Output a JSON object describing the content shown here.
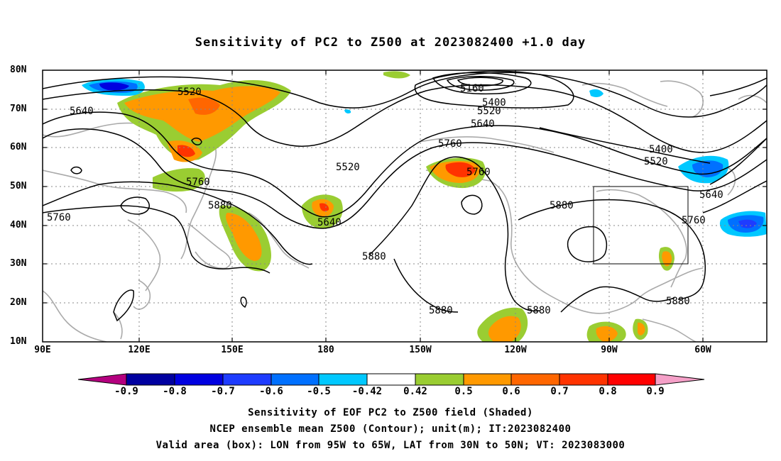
{
  "title": "Sensitivity of PC2 to Z500 at 2023082400 +1.0 day",
  "lat_labels": [
    "80N",
    "70N",
    "60N",
    "50N",
    "40N",
    "30N",
    "20N",
    "10N"
  ],
  "lon_labels": [
    "90E",
    "120E",
    "150E",
    "180",
    "150W",
    "120W",
    "90W",
    "60W"
  ],
  "contour_labels": [
    {
      "text": "5160"
    },
    {
      "text": "5400"
    },
    {
      "text": "5520"
    },
    {
      "text": "5640"
    },
    {
      "text": "5520"
    },
    {
      "text": "5640"
    },
    {
      "text": "5760"
    },
    {
      "text": "5520"
    },
    {
      "text": "5760"
    },
    {
      "text": "5760"
    },
    {
      "text": "5880"
    },
    {
      "text": "5640"
    },
    {
      "text": "5880"
    },
    {
      "text": "5880"
    },
    {
      "text": "5880"
    },
    {
      "text": "5880"
    },
    {
      "text": "5880"
    },
    {
      "text": "5400"
    },
    {
      "text": "5520"
    },
    {
      "text": "5640"
    },
    {
      "text": "5760"
    },
    {
      "text": "5760"
    }
  ],
  "colorbar": {
    "labels": [
      "-0.9",
      "-0.8",
      "-0.7",
      "-0.6",
      "-0.5",
      "-0.42",
      "0.42",
      "0.5",
      "0.6",
      "0.7",
      "0.8",
      "0.9"
    ],
    "colors": [
      "#b4007f",
      "#0000a0",
      "#0000e0",
      "#1e3cff",
      "#0070ff",
      "#00c8ff",
      "#ffffff",
      "#9acd32",
      "#ff9900",
      "#ff6600",
      "#ff3300",
      "#ff0000",
      "#f5a0c8"
    ]
  },
  "captions": [
    "Sensitivity of EOF PC2 to Z500 field (Shaded)",
    "NCEP ensemble mean Z500 (Contour); unit(m); IT:2023082400",
    "Valid area (box): LON from 95W to 65W, LAT from 30N to 50N; VT: 2023083000"
  ]
}
